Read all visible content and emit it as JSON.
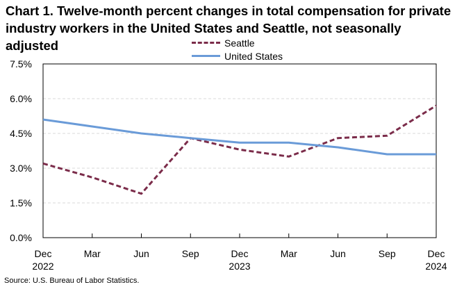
{
  "chart_data": {
    "type": "line",
    "title": "Chart 1. Twelve-month percent changes in total compensation for private industry workers in the United States and Seattle, not seasonally adjusted",
    "categories": [
      "Dec",
      "Mar",
      "Jun",
      "Sep",
      "Dec",
      "Mar",
      "Jun",
      "Sep",
      "Dec"
    ],
    "year_labels": [
      "2022",
      "",
      "",
      "",
      "2023",
      "",
      "",
      "",
      "2024"
    ],
    "series": [
      {
        "name": "Seattle",
        "style": "dashed",
        "color": "#7b2c4a",
        "values": [
          3.2,
          2.6,
          1.9,
          4.3,
          3.8,
          3.5,
          4.3,
          4.4,
          5.7
        ]
      },
      {
        "name": "United States",
        "style": "solid",
        "color": "#6a9bd8",
        "values": [
          5.1,
          4.8,
          4.5,
          4.3,
          4.1,
          4.1,
          3.9,
          3.6,
          3.6
        ]
      }
    ],
    "ylim": [
      0,
      7.5
    ],
    "yticks": [
      "0.0%",
      "1.5%",
      "3.0%",
      "4.5%",
      "6.0%",
      "7.5%"
    ],
    "ytick_values": [
      0,
      1.5,
      3.0,
      4.5,
      6.0,
      7.5
    ],
    "xlabel": "",
    "ylabel": "",
    "grid": true,
    "legend_position": "top-center"
  },
  "source": "Source: U.S. Bureau of Labor Statistics."
}
